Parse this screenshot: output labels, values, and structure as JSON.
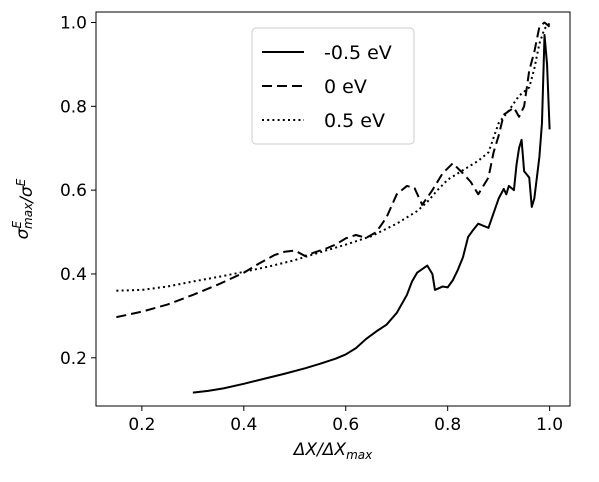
{
  "chart_data": {
    "type": "line",
    "xlabel": "ΔX/ΔX_max",
    "ylabel": "σ^E_max/σ^E",
    "xlim": [
      0.11,
      1.04
    ],
    "ylim": [
      0.085,
      1.025
    ],
    "x_ticks": [
      0.2,
      0.4,
      0.6,
      0.8,
      1.0
    ],
    "x_tick_labels": [
      "0.2",
      "0.4",
      "0.6",
      "0.8",
      "1.0"
    ],
    "y_ticks": [
      0.2,
      0.4,
      0.6,
      0.8,
      1.0
    ],
    "y_tick_labels": [
      "0.2",
      "0.4",
      "0.6",
      "0.8",
      "1.0"
    ],
    "grid": false,
    "legend_position": "top-center",
    "series": [
      {
        "name": "-0.5 eV",
        "style": "solid",
        "color": "#000000",
        "points": [
          [
            0.3,
            0.117
          ],
          [
            0.33,
            0.121
          ],
          [
            0.36,
            0.127
          ],
          [
            0.4,
            0.138
          ],
          [
            0.44,
            0.15
          ],
          [
            0.48,
            0.162
          ],
          [
            0.52,
            0.175
          ],
          [
            0.55,
            0.186
          ],
          [
            0.58,
            0.198
          ],
          [
            0.6,
            0.208
          ],
          [
            0.62,
            0.223
          ],
          [
            0.64,
            0.245
          ],
          [
            0.66,
            0.263
          ],
          [
            0.68,
            0.279
          ],
          [
            0.7,
            0.307
          ],
          [
            0.72,
            0.35
          ],
          [
            0.73,
            0.382
          ],
          [
            0.74,
            0.403
          ],
          [
            0.76,
            0.42
          ],
          [
            0.77,
            0.4
          ],
          [
            0.775,
            0.362
          ],
          [
            0.79,
            0.37
          ],
          [
            0.8,
            0.368
          ],
          [
            0.81,
            0.385
          ],
          [
            0.82,
            0.41
          ],
          [
            0.83,
            0.44
          ],
          [
            0.84,
            0.488
          ],
          [
            0.85,
            0.505
          ],
          [
            0.86,
            0.52
          ],
          [
            0.87,
            0.515
          ],
          [
            0.88,
            0.51
          ],
          [
            0.89,
            0.545
          ],
          [
            0.9,
            0.58
          ],
          [
            0.91,
            0.603
          ],
          [
            0.915,
            0.59
          ],
          [
            0.92,
            0.61
          ],
          [
            0.93,
            0.6
          ],
          [
            0.935,
            0.66
          ],
          [
            0.94,
            0.7
          ],
          [
            0.945,
            0.72
          ],
          [
            0.95,
            0.645
          ],
          [
            0.96,
            0.63
          ],
          [
            0.965,
            0.56
          ],
          [
            0.97,
            0.58
          ],
          [
            0.98,
            0.68
          ],
          [
            0.985,
            0.76
          ],
          [
            0.99,
            0.97
          ],
          [
            0.995,
            0.9
          ],
          [
            1.0,
            0.745
          ]
        ]
      },
      {
        "name": "0 eV",
        "style": "dashed",
        "color": "#000000",
        "points": [
          [
            0.15,
            0.297
          ],
          [
            0.2,
            0.31
          ],
          [
            0.25,
            0.327
          ],
          [
            0.3,
            0.35
          ],
          [
            0.35,
            0.375
          ],
          [
            0.4,
            0.403
          ],
          [
            0.43,
            0.425
          ],
          [
            0.46,
            0.445
          ],
          [
            0.48,
            0.453
          ],
          [
            0.5,
            0.456
          ],
          [
            0.52,
            0.443
          ],
          [
            0.54,
            0.452
          ],
          [
            0.56,
            0.46
          ],
          [
            0.58,
            0.47
          ],
          [
            0.6,
            0.485
          ],
          [
            0.62,
            0.493
          ],
          [
            0.64,
            0.486
          ],
          [
            0.66,
            0.5
          ],
          [
            0.68,
            0.535
          ],
          [
            0.7,
            0.59
          ],
          [
            0.72,
            0.61
          ],
          [
            0.735,
            0.605
          ],
          [
            0.75,
            0.565
          ],
          [
            0.77,
            0.6
          ],
          [
            0.79,
            0.64
          ],
          [
            0.81,
            0.664
          ],
          [
            0.83,
            0.64
          ],
          [
            0.845,
            0.62
          ],
          [
            0.86,
            0.59
          ],
          [
            0.88,
            0.63
          ],
          [
            0.89,
            0.69
          ],
          [
            0.9,
            0.73
          ],
          [
            0.91,
            0.78
          ],
          [
            0.93,
            0.797
          ],
          [
            0.94,
            0.775
          ],
          [
            0.95,
            0.8
          ],
          [
            0.96,
            0.885
          ],
          [
            0.97,
            0.93
          ],
          [
            0.98,
            0.99
          ],
          [
            0.99,
            1.0
          ],
          [
            1.0,
            0.99
          ]
        ]
      },
      {
        "name": "0.5 eV",
        "style": "dotted",
        "color": "#000000",
        "points": [
          [
            0.15,
            0.36
          ],
          [
            0.2,
            0.362
          ],
          [
            0.25,
            0.37
          ],
          [
            0.3,
            0.382
          ],
          [
            0.35,
            0.393
          ],
          [
            0.4,
            0.405
          ],
          [
            0.45,
            0.418
          ],
          [
            0.5,
            0.433
          ],
          [
            0.55,
            0.452
          ],
          [
            0.6,
            0.47
          ],
          [
            0.65,
            0.49
          ],
          [
            0.7,
            0.52
          ],
          [
            0.74,
            0.55
          ],
          [
            0.76,
            0.572
          ],
          [
            0.78,
            0.6
          ],
          [
            0.8,
            0.625
          ],
          [
            0.82,
            0.64
          ],
          [
            0.84,
            0.655
          ],
          [
            0.86,
            0.67
          ],
          [
            0.88,
            0.69
          ],
          [
            0.9,
            0.76
          ],
          [
            0.92,
            0.79
          ],
          [
            0.94,
            0.825
          ],
          [
            0.96,
            0.845
          ],
          [
            0.97,
            0.89
          ],
          [
            0.98,
            0.95
          ],
          [
            0.99,
            0.985
          ],
          [
            1.0,
            0.998
          ]
        ]
      }
    ]
  }
}
